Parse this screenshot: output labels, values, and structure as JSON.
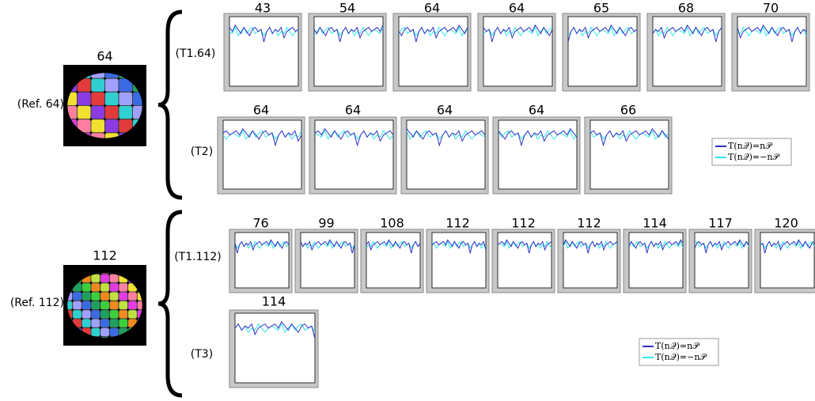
{
  "groups": [
    {
      "ref_label": "64",
      "ref_caption": "(Ref. 64)",
      "rows": [
        {
          "label": "(T1.64)",
          "plots": [
            "43",
            "54",
            "64",
            "64",
            "65",
            "68",
            "70"
          ]
        },
        {
          "label": "(T2)",
          "plots": [
            "64",
            "64",
            "64",
            "64",
            "66"
          ]
        }
      ],
      "legend": [
        "T(n𝒬)=n𝒫",
        "T(n𝒬)=−n𝒫"
      ]
    },
    {
      "ref_label": "112",
      "ref_caption": "(Ref. 112)",
      "rows": [
        {
          "label": "(T1.112)",
          "plots": [
            "76",
            "99",
            "108",
            "112",
            "112",
            "112",
            "114",
            "117",
            "120"
          ]
        },
        {
          "label": "(T3)",
          "plots": [
            "114"
          ]
        }
      ],
      "legend": [
        "T(n𝒬)=n𝒫",
        "T(n𝒬)=−n𝒫"
      ]
    }
  ]
}
